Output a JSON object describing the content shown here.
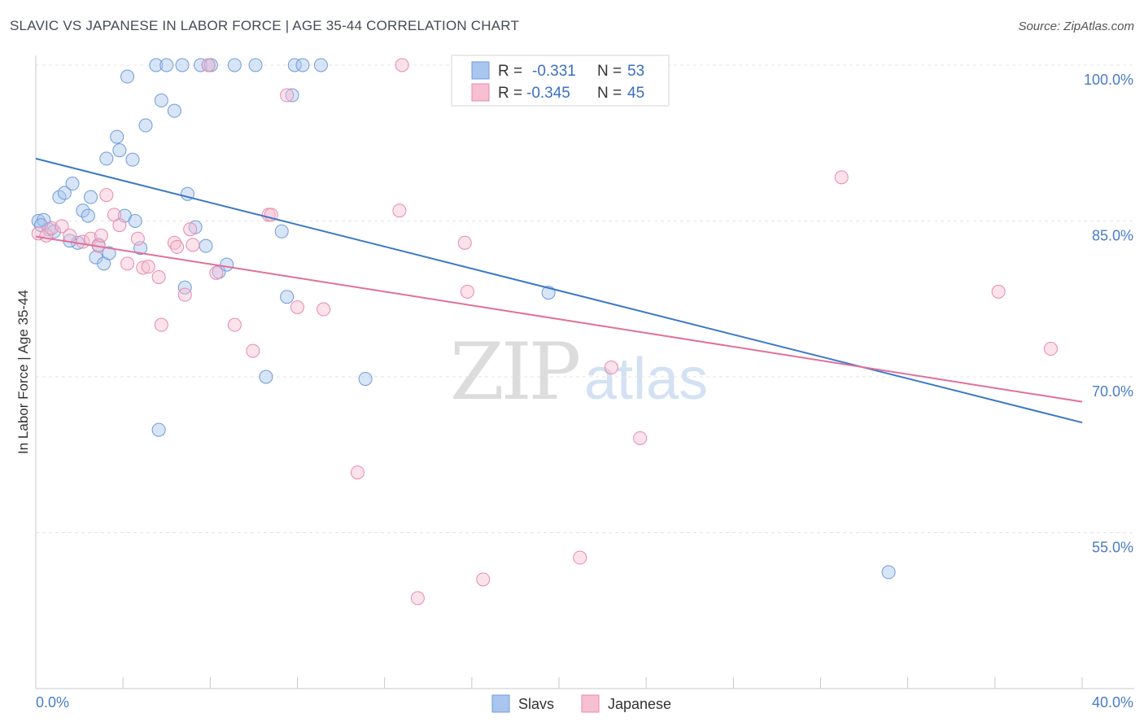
{
  "title": "SLAVIC VS JAPANESE IN LABOR FORCE | AGE 35-44 CORRELATION CHART",
  "source": "Source: ZipAtlas.com",
  "watermark": {
    "zip": "ZIP",
    "atlas": "atlas"
  },
  "legend": {
    "r_label": "R =",
    "n_label": "N =",
    "rows": [
      {
        "r": "-0.331",
        "n": "53",
        "color": "#a9c6ee",
        "stroke": "#6f9bd9"
      },
      {
        "r": "-0.345",
        "n": "45",
        "color": "#f6bfd2",
        "stroke": "#e88aab"
      }
    ]
  },
  "bottom_legend": [
    {
      "label": "Slavs",
      "color": "#a9c6ee",
      "stroke": "#6f9bd9"
    },
    {
      "label": "Japanese",
      "color": "#f6bfd2",
      "stroke": "#e88aab"
    }
  ],
  "chart_data": {
    "type": "scatter",
    "title": "SLAVIC VS JAPANESE IN LABOR FORCE | AGE 35-44 CORRELATION CHART",
    "xlabel": "",
    "ylabel": "In Labor Force | Age 35-44",
    "xlim": [
      0,
      40
    ],
    "ylim": [
      40,
      100
    ],
    "x_tick_labels": [
      "0.0%",
      "40.0%"
    ],
    "y_ticks": [
      100,
      85,
      70,
      55
    ],
    "y_tick_labels": [
      "100.0%",
      "85.0%",
      "70.0%",
      "55.0%"
    ],
    "series": [
      {
        "name": "Slavs",
        "color": "#6f9bd9",
        "line_color": "#3a78c9",
        "trend": {
          "x": [
            0,
            40
          ],
          "y": [
            91.0,
            65.6
          ]
        },
        "points": [
          {
            "x": 0.1,
            "y": 85.0
          },
          {
            "x": 0.3,
            "y": 85.1
          },
          {
            "x": 0.5,
            "y": 84.2
          },
          {
            "x": 0.7,
            "y": 84.0
          },
          {
            "x": 0.9,
            "y": 87.3
          },
          {
            "x": 1.1,
            "y": 87.7
          },
          {
            "x": 1.4,
            "y": 88.6
          },
          {
            "x": 1.6,
            "y": 82.9
          },
          {
            "x": 1.8,
            "y": 86.0
          },
          {
            "x": 2.0,
            "y": 85.5
          },
          {
            "x": 2.1,
            "y": 87.3
          },
          {
            "x": 2.3,
            "y": 81.5
          },
          {
            "x": 2.4,
            "y": 82.7
          },
          {
            "x": 2.6,
            "y": 80.9
          },
          {
            "x": 2.7,
            "y": 91.0
          },
          {
            "x": 2.8,
            "y": 81.9
          },
          {
            "x": 3.1,
            "y": 93.1
          },
          {
            "x": 3.2,
            "y": 91.8
          },
          {
            "x": 3.4,
            "y": 85.5
          },
          {
            "x": 3.5,
            "y": 98.9
          },
          {
            "x": 3.7,
            "y": 90.9
          },
          {
            "x": 3.8,
            "y": 85.0
          },
          {
            "x": 4.0,
            "y": 82.4
          },
          {
            "x": 4.2,
            "y": 94.2
          },
          {
            "x": 4.6,
            "y": 100.0
          },
          {
            "x": 4.7,
            "y": 64.9
          },
          {
            "x": 4.8,
            "y": 96.6
          },
          {
            "x": 5.0,
            "y": 100.0
          },
          {
            "x": 5.3,
            "y": 95.6
          },
          {
            "x": 5.6,
            "y": 100.0
          },
          {
            "x": 5.7,
            "y": 78.6
          },
          {
            "x": 5.8,
            "y": 87.6
          },
          {
            "x": 6.1,
            "y": 84.4
          },
          {
            "x": 6.3,
            "y": 100.0
          },
          {
            "x": 6.5,
            "y": 82.6
          },
          {
            "x": 6.6,
            "y": 100.0
          },
          {
            "x": 6.7,
            "y": 100.0
          },
          {
            "x": 7.0,
            "y": 80.1
          },
          {
            "x": 7.3,
            "y": 80.8
          },
          {
            "x": 7.6,
            "y": 100.0
          },
          {
            "x": 8.4,
            "y": 100.0
          },
          {
            "x": 8.8,
            "y": 70.0
          },
          {
            "x": 9.4,
            "y": 84.0
          },
          {
            "x": 9.6,
            "y": 77.7
          },
          {
            "x": 9.8,
            "y": 97.1
          },
          {
            "x": 9.9,
            "y": 100.0
          },
          {
            "x": 10.2,
            "y": 100.0
          },
          {
            "x": 10.9,
            "y": 100.0
          },
          {
            "x": 12.6,
            "y": 69.8
          },
          {
            "x": 19.6,
            "y": 78.1
          },
          {
            "x": 32.6,
            "y": 51.2
          },
          {
            "x": 0.2,
            "y": 84.6
          },
          {
            "x": 1.3,
            "y": 83.1
          }
        ]
      },
      {
        "name": "Japanese",
        "color": "#e88aab",
        "line_color": "#e0709a",
        "trend": {
          "x": [
            0,
            40
          ],
          "y": [
            83.5,
            67.6
          ]
        },
        "points": [
          {
            "x": 0.1,
            "y": 83.8
          },
          {
            "x": 0.4,
            "y": 83.6
          },
          {
            "x": 0.6,
            "y": 84.3
          },
          {
            "x": 1.0,
            "y": 84.5
          },
          {
            "x": 1.3,
            "y": 83.6
          },
          {
            "x": 1.8,
            "y": 83.0
          },
          {
            "x": 2.1,
            "y": 83.3
          },
          {
            "x": 2.4,
            "y": 82.6
          },
          {
            "x": 2.5,
            "y": 83.6
          },
          {
            "x": 2.7,
            "y": 87.5
          },
          {
            "x": 3.0,
            "y": 85.6
          },
          {
            "x": 3.2,
            "y": 84.6
          },
          {
            "x": 3.5,
            "y": 80.9
          },
          {
            "x": 3.9,
            "y": 83.3
          },
          {
            "x": 4.1,
            "y": 80.5
          },
          {
            "x": 4.3,
            "y": 80.6
          },
          {
            "x": 4.7,
            "y": 79.6
          },
          {
            "x": 4.8,
            "y": 75.0
          },
          {
            "x": 5.3,
            "y": 82.9
          },
          {
            "x": 5.4,
            "y": 82.5
          },
          {
            "x": 5.7,
            "y": 77.9
          },
          {
            "x": 6.0,
            "y": 82.7
          },
          {
            "x": 6.6,
            "y": 100.0
          },
          {
            "x": 6.9,
            "y": 80.0
          },
          {
            "x": 5.9,
            "y": 84.2
          },
          {
            "x": 7.6,
            "y": 75.0
          },
          {
            "x": 8.3,
            "y": 72.5
          },
          {
            "x": 8.9,
            "y": 85.6
          },
          {
            "x": 9.0,
            "y": 85.6
          },
          {
            "x": 9.6,
            "y": 97.1
          },
          {
            "x": 10.0,
            "y": 76.7
          },
          {
            "x": 11.0,
            "y": 76.5
          },
          {
            "x": 12.3,
            "y": 60.8
          },
          {
            "x": 13.9,
            "y": 86.0
          },
          {
            "x": 14.0,
            "y": 100.0
          },
          {
            "x": 14.6,
            "y": 48.7
          },
          {
            "x": 16.4,
            "y": 82.9
          },
          {
            "x": 16.5,
            "y": 78.2
          },
          {
            "x": 17.1,
            "y": 50.5
          },
          {
            "x": 20.8,
            "y": 52.6
          },
          {
            "x": 22.0,
            "y": 70.9
          },
          {
            "x": 23.1,
            "y": 64.1
          },
          {
            "x": 30.8,
            "y": 89.2
          },
          {
            "x": 36.8,
            "y": 78.2
          },
          {
            "x": 38.8,
            "y": 72.7
          }
        ]
      }
    ]
  }
}
